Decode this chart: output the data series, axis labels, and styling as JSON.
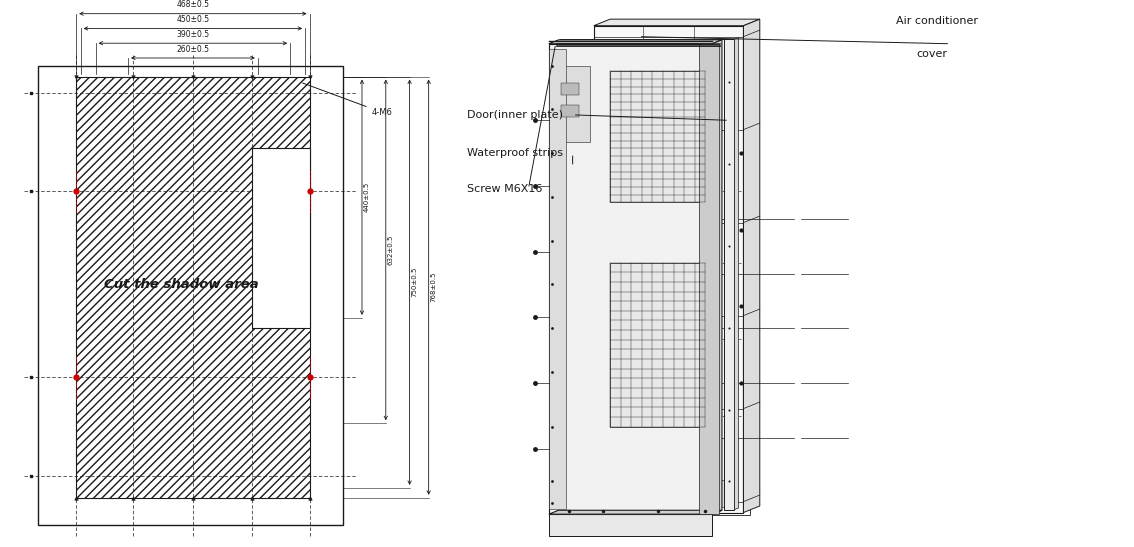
{
  "bg_color": "#ffffff",
  "lc": "#1a1a1a",
  "rc": "#cc0000",
  "dim_labels_top": [
    "468±0.5",
    "450±0.5",
    "390±0.5",
    "260±0.5"
  ],
  "dim_labels_right": [
    "440±0.5",
    "632±0.5",
    "750±0.5",
    "768±0.5"
  ],
  "label_4m6": "4-M6",
  "cut_text": "Cut the shadow area",
  "rp_labels": [
    "Air conditioner\ncover",
    "Door(inner plate)",
    "Waterproof strips",
    "Screw M6X16"
  ]
}
